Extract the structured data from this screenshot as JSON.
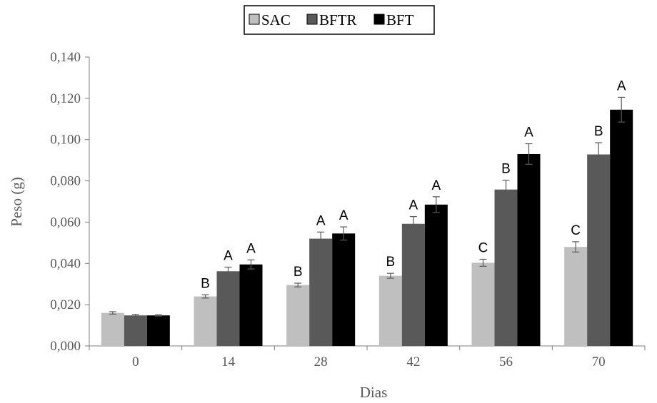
{
  "chart_data": {
    "type": "bar",
    "title": "",
    "xlabel": "Dias",
    "ylabel": "Peso (g)",
    "categories": [
      "0",
      "14",
      "28",
      "42",
      "56",
      "70"
    ],
    "ylim": [
      0,
      0.14
    ],
    "yticks": [
      "0,000",
      "0,020",
      "0,040",
      "0,060",
      "0,080",
      "0,100",
      "0,120",
      "0,140"
    ],
    "grid": false,
    "legend_position": "top",
    "series": [
      {
        "name": "SAC",
        "color": "#bfbfbf",
        "values": [
          0.016,
          0.024,
          0.0295,
          0.034,
          0.0403,
          0.048
        ],
        "errors": [
          0.0006,
          0.0008,
          0.0009,
          0.0012,
          0.0017,
          0.0025
        ],
        "labels": [
          "",
          "B",
          "B",
          "B",
          "C",
          "C"
        ]
      },
      {
        "name": "BFTR",
        "color": "#595959",
        "values": [
          0.0148,
          0.0362,
          0.052,
          0.0592,
          0.0758,
          0.0928
        ],
        "errors": [
          0.0005,
          0.002,
          0.0032,
          0.0035,
          0.0045,
          0.0057
        ],
        "labels": [
          "",
          "A",
          "A",
          "A",
          "B",
          "B"
        ]
      },
      {
        "name": "BFT",
        "color": "#000000",
        "values": [
          0.0148,
          0.0395,
          0.0545,
          0.0685,
          0.093,
          0.1145
        ],
        "errors": [
          0.0003,
          0.0022,
          0.0032,
          0.0038,
          0.005,
          0.006
        ],
        "labels": [
          "",
          "A",
          "A",
          "A",
          "A",
          "A"
        ]
      }
    ]
  }
}
